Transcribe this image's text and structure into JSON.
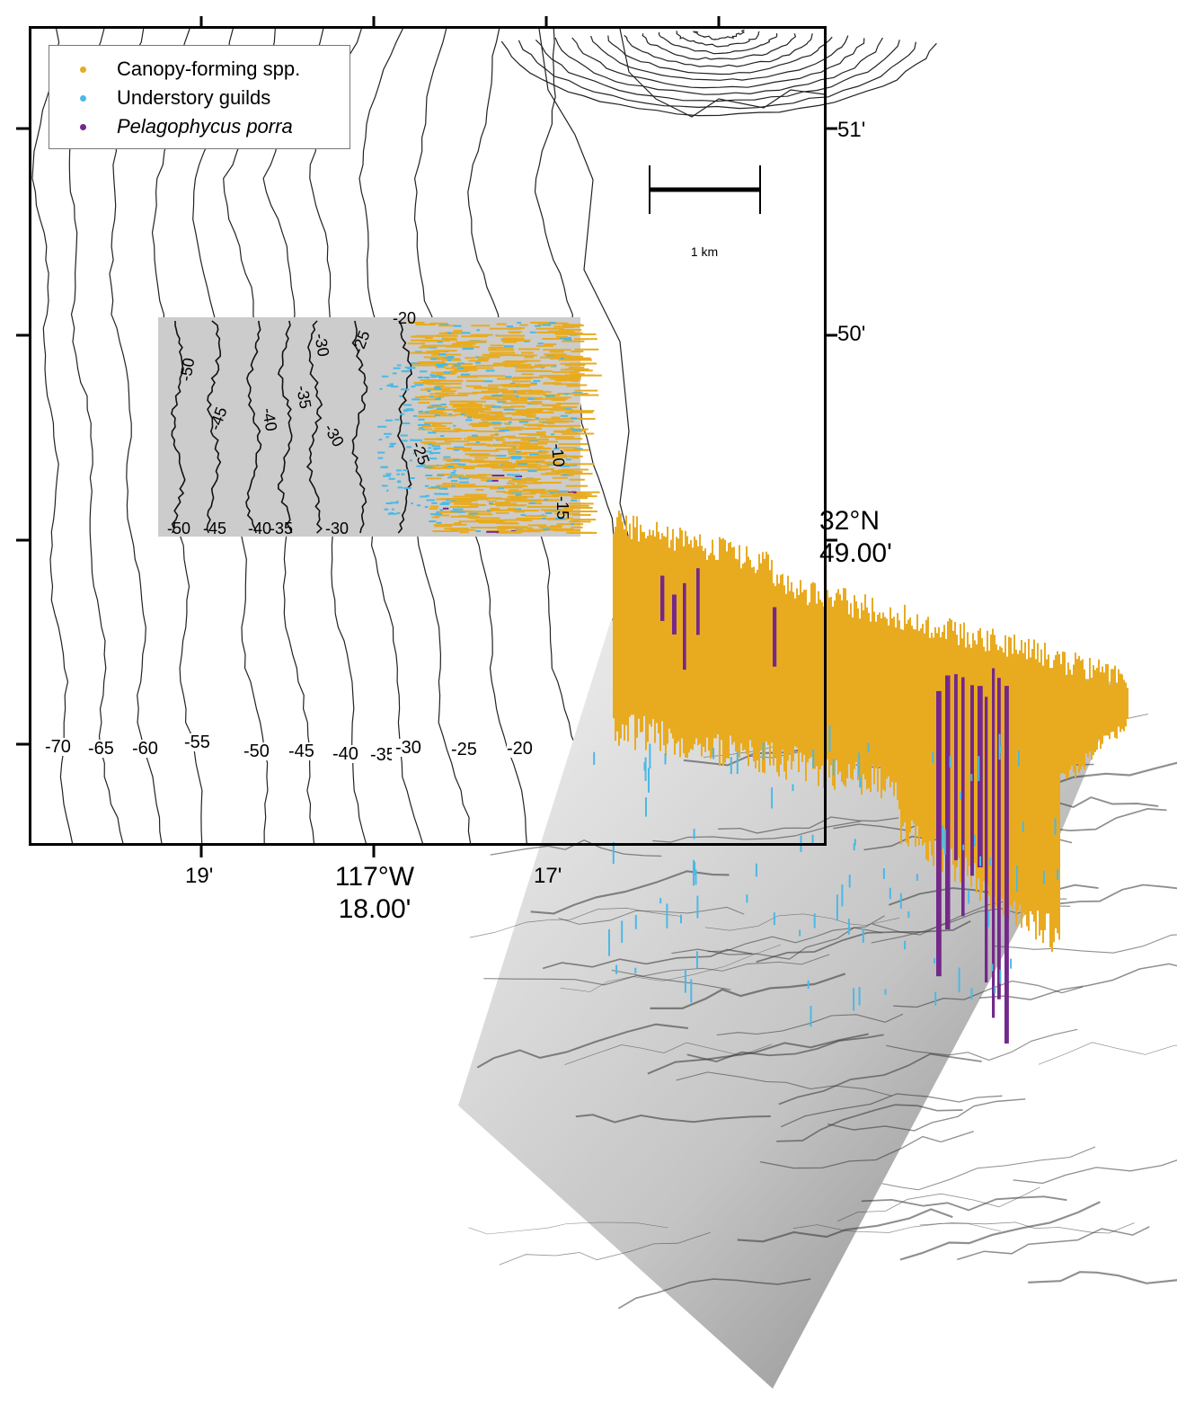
{
  "legend": {
    "items": [
      {
        "label": "Canopy-forming spp.",
        "color": "#e8ab20",
        "italic": false
      },
      {
        "label": "Understory guilds",
        "color": "#4ab9e6",
        "italic": false
      },
      {
        "label": "Pelagophycus porra",
        "color": "#74288a",
        "italic": true
      }
    ]
  },
  "scale_bar": {
    "label": "1 km"
  },
  "axes": {
    "x_ticks": [
      "19'",
      "117°W\n18.00'",
      "17'"
    ],
    "y_ticks": [
      "51'",
      "50'",
      "32°N\n49.00'"
    ]
  },
  "depth_contours": [
    "-70",
    "-65",
    "-60",
    "-55",
    "-50",
    "-45",
    "-40",
    "-35",
    "-30",
    "-25",
    "-20"
  ],
  "inset": {
    "contour_labels": [
      "-20",
      "-25",
      "-30",
      "-35",
      "-40",
      "-45",
      "-50",
      "-10",
      "-25",
      "-30",
      "-15"
    ],
    "bottom_labels": [
      "-50",
      "-45",
      "-40",
      "-35",
      "-30"
    ]
  },
  "colors": {
    "canopy": "#e8ab20",
    "understory": "#4ab9e6",
    "pelagophycus": "#74288a",
    "inset_background": "#cccccc"
  }
}
